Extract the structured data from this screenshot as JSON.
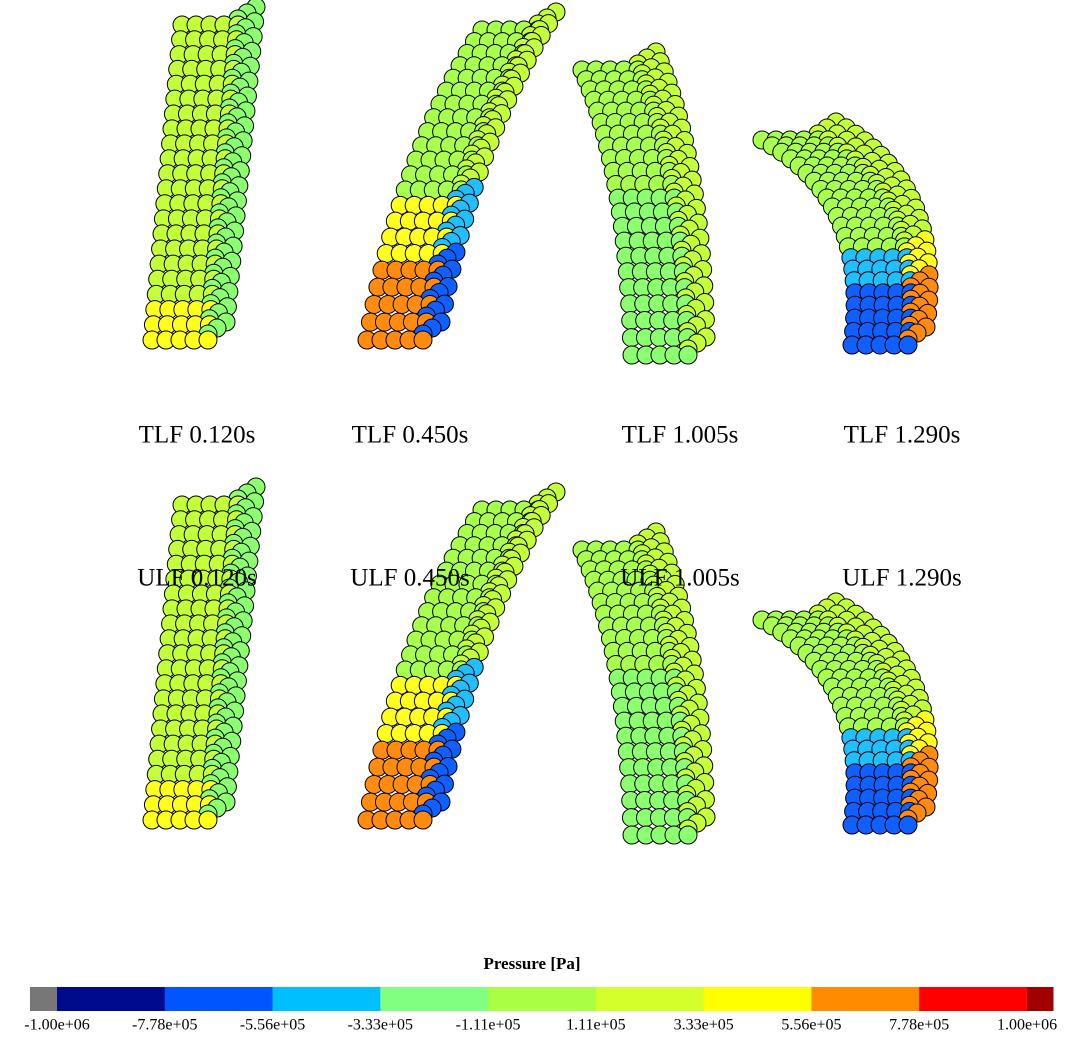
{
  "panels": [
    {
      "label": "TLF 0.120s"
    },
    {
      "label": "TLF 0.450s"
    },
    {
      "label": "TLF 1.005s"
    },
    {
      "label": "TLF 1.290s"
    },
    {
      "label": "ULF 0.120s"
    },
    {
      "label": "ULF 0.450s"
    },
    {
      "label": "ULF 1.005s"
    },
    {
      "label": "ULF 1.290s"
    }
  ],
  "colorbar": {
    "title": "Pressure [Pa]",
    "ticks": [
      "-1.00e+06",
      "-7.78e+05",
      "-5.56e+05",
      "-3.33e+05",
      "-1.11e+05",
      "1.11e+05",
      "3.33e+05",
      "5.56e+05",
      "7.78e+05",
      "1.00e+06"
    ],
    "colors": [
      "#777777",
      "#000a8c",
      "#0055ff",
      "#00bfff",
      "#80ff80",
      "#aaff44",
      "#d4ff2a",
      "#ffff00",
      "#ff8c00",
      "#ff0000",
      "#a00000"
    ]
  }
}
